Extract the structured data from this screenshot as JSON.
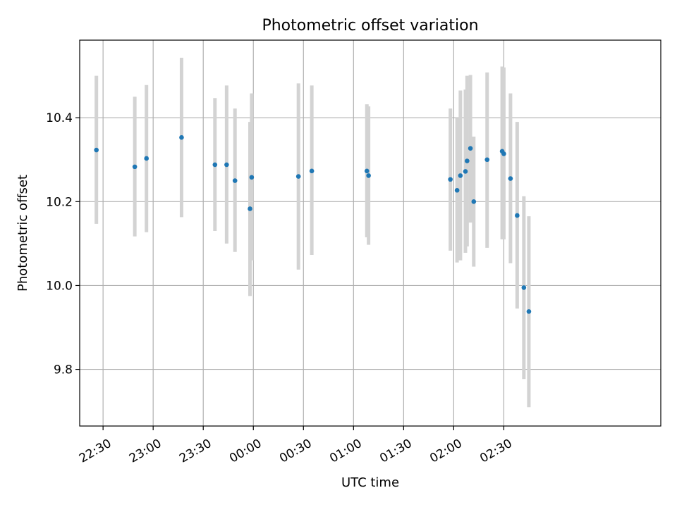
{
  "chart_data": {
    "type": "scatter",
    "title": "Photometric offset variation",
    "xlabel": "UTC time",
    "ylabel": "Photometric offset",
    "grid": true,
    "xlim": [
      "22:16",
      "04:04"
    ],
    "ylim": [
      9.665,
      10.585
    ],
    "xticks": [
      "22:30",
      "23:00",
      "23:30",
      "00:00",
      "00:30",
      "01:00",
      "01:30",
      "02:00",
      "02:30"
    ],
    "yticks": [
      9.8,
      10.0,
      10.2,
      10.4
    ],
    "yticklabels": [
      "9.8",
      "10.0",
      "10.2",
      "10.4"
    ],
    "point_color": "#1f77b4",
    "errorbar_color": "#d3d3d3",
    "points": [
      {
        "t": "22:26",
        "y": 10.323,
        "lo": 10.147,
        "hi": 10.5
      },
      {
        "t": "22:49",
        "y": 10.283,
        "lo": 10.117,
        "hi": 10.45
      },
      {
        "t": "22:56",
        "y": 10.303,
        "lo": 10.127,
        "hi": 10.478
      },
      {
        "t": "23:17",
        "y": 10.353,
        "lo": 10.163,
        "hi": 10.543
      },
      {
        "t": "23:37",
        "y": 10.288,
        "lo": 10.13,
        "hi": 10.447
      },
      {
        "t": "23:44",
        "y": 10.288,
        "lo": 10.1,
        "hi": 10.477
      },
      {
        "t": "23:49",
        "y": 10.25,
        "lo": 10.08,
        "hi": 10.422
      },
      {
        "t": "23:58",
        "y": 10.183,
        "lo": 9.975,
        "hi": 10.39
      },
      {
        "t": "23:59",
        "y": 10.258,
        "lo": 10.06,
        "hi": 10.458
      },
      {
        "t": "00:27",
        "y": 10.26,
        "lo": 10.038,
        "hi": 10.482
      },
      {
        "t": "00:35",
        "y": 10.273,
        "lo": 10.073,
        "hi": 10.477
      },
      {
        "t": "01:08",
        "y": 10.273,
        "lo": 10.115,
        "hi": 10.432
      },
      {
        "t": "01:09",
        "y": 10.262,
        "lo": 10.097,
        "hi": 10.427
      },
      {
        "t": "01:58",
        "y": 10.253,
        "lo": 10.083,
        "hi": 10.422
      },
      {
        "t": "02:02",
        "y": 10.227,
        "lo": 10.055,
        "hi": 10.4
      },
      {
        "t": "02:04",
        "y": 10.262,
        "lo": 10.06,
        "hi": 10.465
      },
      {
        "t": "02:07",
        "y": 10.272,
        "lo": 10.078,
        "hi": 10.467
      },
      {
        "t": "02:08",
        "y": 10.297,
        "lo": 10.093,
        "hi": 10.5
      },
      {
        "t": "02:10",
        "y": 10.327,
        "lo": 10.15,
        "hi": 10.502
      },
      {
        "t": "02:12",
        "y": 10.2,
        "lo": 10.045,
        "hi": 10.355
      },
      {
        "t": "02:20",
        "y": 10.3,
        "lo": 10.09,
        "hi": 10.508
      },
      {
        "t": "02:29",
        "y": 10.32,
        "lo": 10.11,
        "hi": 10.522
      },
      {
        "t": "02:30",
        "y": 10.314,
        "lo": 10.11,
        "hi": 10.52
      },
      {
        "t": "02:34",
        "y": 10.255,
        "lo": 10.053,
        "hi": 10.458
      },
      {
        "t": "02:38",
        "y": 10.167,
        "lo": 9.945,
        "hi": 10.39
      },
      {
        "t": "02:42",
        "y": 9.995,
        "lo": 9.777,
        "hi": 10.213
      },
      {
        "t": "02:45",
        "y": 9.938,
        "lo": 9.71,
        "hi": 10.165
      }
    ]
  }
}
